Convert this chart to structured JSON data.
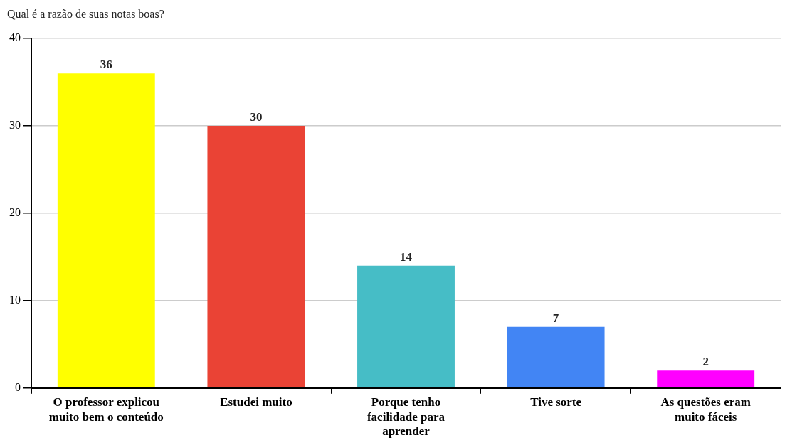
{
  "chart_data": {
    "type": "bar",
    "title": "Qual é a razão de suas notas boas?",
    "categories": [
      "O professor explicou muito bem o conteúdo",
      "Estudei muito",
      "Porque tenho facilidade para aprender",
      "Tive sorte",
      "As questões eram muito fáceis"
    ],
    "values": [
      36,
      30,
      14,
      7,
      2
    ],
    "colors": [
      "#ffff00",
      "#ea4335",
      "#46bdc6",
      "#4285f4",
      "#ff00ff"
    ],
    "ylim": [
      0,
      40
    ],
    "yticks": [
      0,
      10,
      20,
      30,
      40
    ],
    "grid": "y",
    "legend": false,
    "data_labels": true
  }
}
